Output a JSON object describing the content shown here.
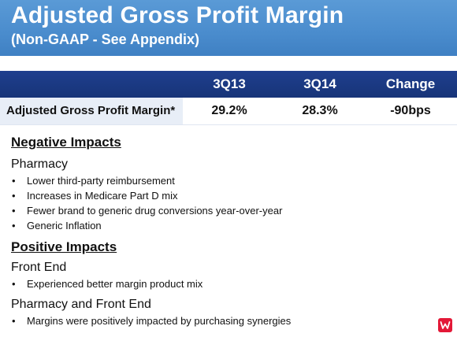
{
  "header": {
    "title": "Adjusted Gross Profit Margin",
    "subtitle": "(Non-GAAP - See Appendix)"
  },
  "table": {
    "columns": [
      "",
      "3Q13",
      "3Q14",
      "Change"
    ],
    "row": {
      "label": "Adjusted Gross Profit Margin*",
      "values": [
        "29.2%",
        "28.3%",
        "-90bps"
      ]
    }
  },
  "negative": {
    "heading": "Negative Impacts",
    "groups": [
      {
        "title": "Pharmacy",
        "bullets": [
          "Lower third-party reimbursement",
          "Increases in Medicare Part D mix",
          "Fewer brand to generic drug conversions year-over-year",
          "Generic Inflation"
        ]
      }
    ]
  },
  "positive": {
    "heading": "Positive Impacts",
    "groups": [
      {
        "title": "Front End",
        "bullets": [
          "Experienced better margin product mix"
        ]
      },
      {
        "title": "Pharmacy and Front End",
        "bullets": [
          "Margins were positively impacted by purchasing synergies"
        ]
      }
    ]
  },
  "bullet_glyph": "•",
  "colors": {
    "header_blue": "#4a8ccd",
    "table_header_navy": "#1b3a84",
    "row_label_bg": "#e8eef7",
    "logo_red": "#e31837"
  },
  "logo": {
    "icon": "walgreens-w-logo"
  }
}
